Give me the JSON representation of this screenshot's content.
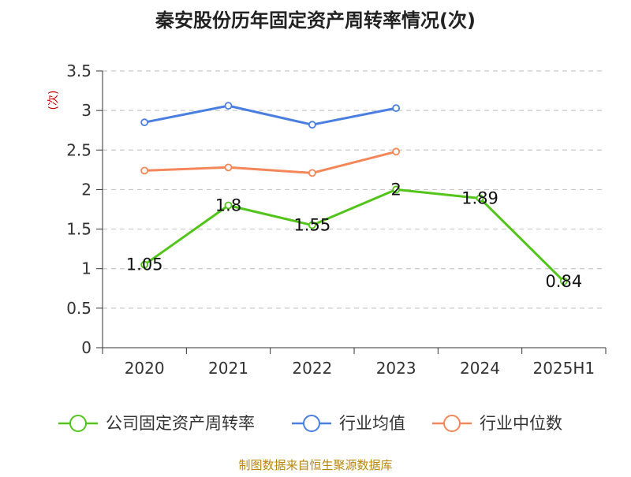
{
  "chart_data": {
    "type": "line",
    "title": "秦安股份历年固定资产周转率情况(次)",
    "ylabel": "(次)",
    "xlabel": "",
    "categories": [
      "2020",
      "2021",
      "2022",
      "2023",
      "2024",
      "2025H1"
    ],
    "ylim": [
      0,
      3.5
    ],
    "yticks": [
      "0",
      "0.5",
      "1",
      "1.5",
      "2",
      "2.5",
      "3",
      "3.5"
    ],
    "ytick_values": [
      0,
      0.5,
      1,
      1.5,
      2,
      2.5,
      3,
      3.5
    ],
    "grid": true,
    "legend_position": "bottom",
    "series": [
      {
        "name": "公司固定资产周转率",
        "color": "#52c41a",
        "values": [
          1.05,
          1.8,
          1.55,
          2,
          1.89,
          0.84
        ],
        "labels": [
          "1.05",
          "1.8",
          "1.55",
          "2",
          "1.89",
          "0.84"
        ],
        "show_labels": true
      },
      {
        "name": "行业均值",
        "color": "#4a7ee0",
        "values": [
          2.85,
          3.06,
          2.82,
          3.03,
          null,
          null
        ],
        "show_labels": false
      },
      {
        "name": "行业中位数",
        "color": "#f4875a",
        "values": [
          2.24,
          2.28,
          2.21,
          2.48,
          null,
          null
        ],
        "show_labels": false
      }
    ],
    "source": "制图数据来自恒生聚源数据库"
  }
}
